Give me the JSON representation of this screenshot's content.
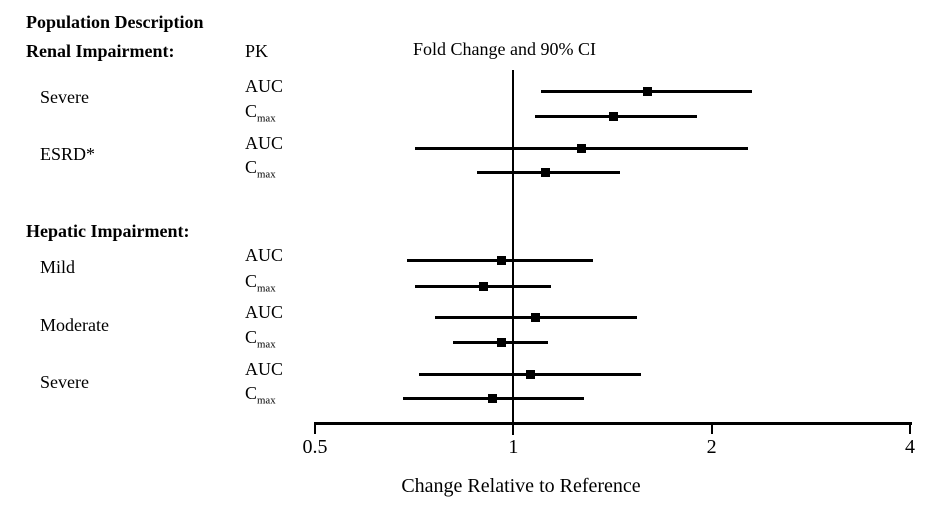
{
  "page_title": "Population Description",
  "columns": {
    "pk": "PK",
    "plot": "Fold Change and 90% CI"
  },
  "chart_data": {
    "type": "forest",
    "title": "Fold Change and 90% CI",
    "xlabel": "Change Relative to Reference",
    "xscale": "log2",
    "xlim": [
      0.5,
      4
    ],
    "xticks": [
      0.5,
      1,
      2,
      4
    ],
    "xtick_labels": [
      "0.5",
      "1",
      "2",
      "4"
    ],
    "reference_line": 1,
    "ci_level": "90%",
    "marker_color": "#000000",
    "line_color": "#000000",
    "groups": [
      {
        "heading": "Renal Impairment:",
        "populations": [
          {
            "name": "Severe",
            "measures": [
              {
                "pk": "AUC",
                "estimate": 1.6,
                "ci_low": 1.1,
                "ci_high": 2.3
              },
              {
                "pk": "C_max",
                "estimate": 1.42,
                "ci_low": 1.08,
                "ci_high": 1.9
              }
            ]
          },
          {
            "name": "ESRD*",
            "measures": [
              {
                "pk": "AUC",
                "estimate": 1.27,
                "ci_low": 0.71,
                "ci_high": 2.27
              },
              {
                "pk": "C_max",
                "estimate": 1.12,
                "ci_low": 0.88,
                "ci_high": 1.45
              }
            ]
          }
        ]
      },
      {
        "heading": "Hepatic Impairment:",
        "populations": [
          {
            "name": "Mild",
            "measures": [
              {
                "pk": "AUC",
                "estimate": 0.96,
                "ci_low": 0.69,
                "ci_high": 1.32
              },
              {
                "pk": "C_max",
                "estimate": 0.9,
                "ci_low": 0.71,
                "ci_high": 1.14
              }
            ]
          },
          {
            "name": "Moderate",
            "measures": [
              {
                "pk": "AUC",
                "estimate": 1.08,
                "ci_low": 0.76,
                "ci_high": 1.54
              },
              {
                "pk": "C_max",
                "estimate": 0.96,
                "ci_low": 0.81,
                "ci_high": 1.13
              }
            ]
          },
          {
            "name": "Severe",
            "measures": [
              {
                "pk": "AUC",
                "estimate": 1.06,
                "ci_low": 0.72,
                "ci_high": 1.56
              },
              {
                "pk": "C_max",
                "estimate": 0.93,
                "ci_low": 0.68,
                "ci_high": 1.28
              }
            ]
          }
        ]
      }
    ]
  }
}
